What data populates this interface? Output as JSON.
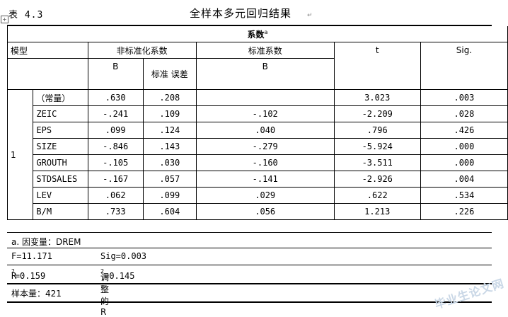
{
  "header": {
    "table_no": "表 4.3",
    "title": "全样本多元回归结果",
    "para_mark": "↵"
  },
  "table": {
    "caption": "系数",
    "caption_sup": "a",
    "model_label": "模型",
    "model_value": "1",
    "col_unstd": "非标准化系数",
    "col_std": "标准系数",
    "col_t": "t",
    "col_sig": "Sig.",
    "sub_b": "B",
    "sub_se": "标准 误差",
    "sub_beta": "B",
    "rows": [
      {
        "var": "（常量）",
        "b": ".630",
        "se": ".208",
        "beta": "",
        "t": "3.023",
        "sig": ".003"
      },
      {
        "var": "ZEIC",
        "b": "-.241",
        "se": ".109",
        "beta": "-.102",
        "t": "-2.209",
        "sig": ".028"
      },
      {
        "var": "EPS",
        "b": ".099",
        "se": ".124",
        "beta": ".040",
        "t": ".796",
        "sig": ".426"
      },
      {
        "var": "SIZE",
        "b": "-.846",
        "se": ".143",
        "beta": "-.279",
        "t": "-5.924",
        "sig": ".000"
      },
      {
        "var": "GROUTH",
        "b": "-.105",
        "se": ".030",
        "beta": "-.160",
        "t": "-3.511",
        "sig": ".000"
      },
      {
        "var": "STDSALES",
        "b": "-.167",
        "se": ".057",
        "beta": "-.141",
        "t": "-2.926",
        "sig": ".004"
      },
      {
        "var": "LEV",
        "b": ".062",
        "se": ".099",
        "beta": ".029",
        "t": ".622",
        "sig": ".534"
      },
      {
        "var": "B/M",
        "b": ".733",
        "se": ".604",
        "beta": ".056",
        "t": "1.213",
        "sig": ".226"
      }
    ]
  },
  "notes": {
    "dependent": "a. 因变量：DREM",
    "f_stat": "F=11.171",
    "sig_stat": "Sig=0.003",
    "r2_label": "R",
    "r2_value": "=0.159",
    "adj_r2_label": "调整的R",
    "adj_r2_value": "=0.145",
    "sample": "样本量：421"
  },
  "watermark": "毕业生论文网"
}
